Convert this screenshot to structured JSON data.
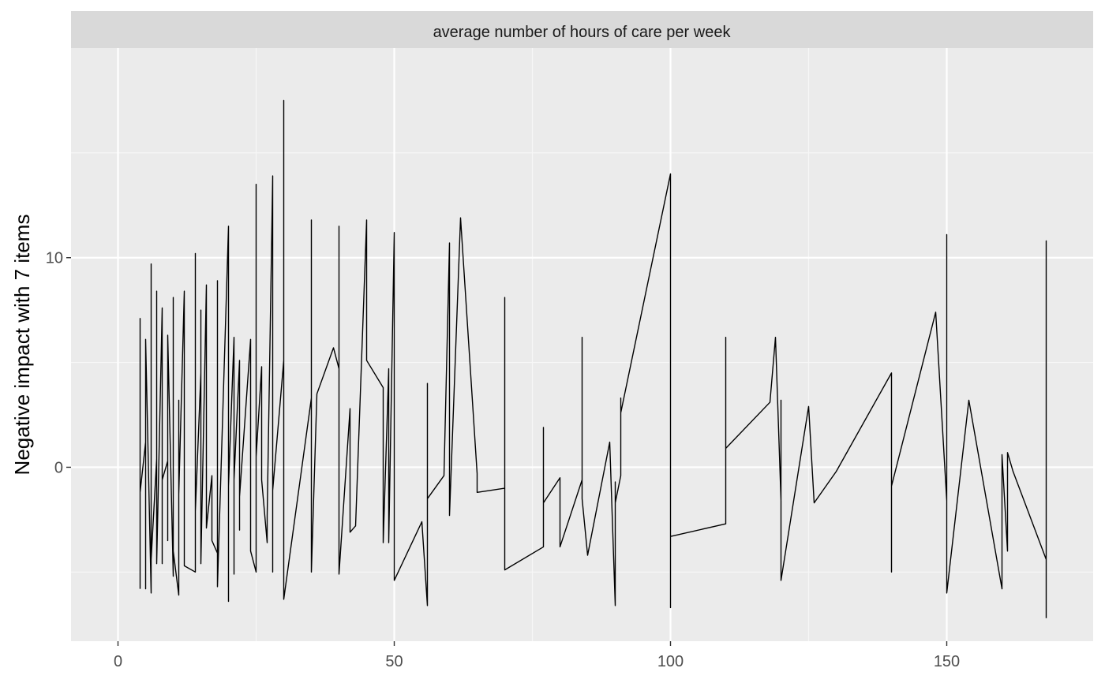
{
  "chart_data": {
    "type": "line",
    "facet_label": "average number of hours of care per week",
    "title": "",
    "xlabel": "",
    "ylabel": "Negative impact with 7 items",
    "xlim": [
      -8.5,
      176.5
    ],
    "ylim": [
      -8.3,
      20
    ],
    "x_breaks": [
      0,
      50,
      100,
      150
    ],
    "x_minor_breaks": [
      25,
      75,
      125
    ],
    "y_breaks": [
      0,
      10
    ],
    "y_minor_breaks": [
      -5,
      5,
      15
    ],
    "x_tick_labels": [
      "0",
      "50",
      "100",
      "150"
    ],
    "y_tick_labels": [
      "0",
      "10"
    ],
    "grid": true,
    "legend": "none",
    "colors": {
      "panel_background": "#ebebeb",
      "strip_background": "#d9d9d9",
      "grid_major": "#ffffff",
      "grid_minor": "#f7f7f7",
      "line": "#000000"
    },
    "series": [
      {
        "x": [
          4,
          4,
          4,
          5,
          5,
          5,
          6,
          6,
          6,
          7,
          7,
          7,
          8,
          8,
          8,
          9,
          9,
          9,
          10,
          10,
          10,
          11,
          11,
          11,
          12,
          12,
          14,
          14,
          14,
          15,
          15,
          15,
          16,
          16,
          17,
          17,
          18,
          18,
          18,
          20,
          20,
          20,
          21,
          21,
          21,
          22,
          22,
          22,
          24,
          24,
          25,
          25,
          25,
          26,
          26,
          27,
          27,
          28,
          28,
          28,
          30,
          30,
          30,
          35,
          35,
          35,
          36,
          39,
          40,
          40,
          40,
          42,
          42,
          43,
          45,
          45,
          48,
          48,
          49,
          49,
          50,
          50,
          50,
          55,
          56,
          56,
          56,
          59,
          60,
          60,
          62,
          65,
          65,
          70,
          70,
          70,
          77,
          77,
          77,
          80,
          80,
          80,
          84,
          84,
          84,
          85,
          89,
          90,
          90,
          90,
          91,
          91,
          91,
          100,
          100,
          100,
          110,
          110,
          110,
          118,
          119,
          120,
          120,
          120,
          125,
          126,
          130,
          140,
          140,
          140,
          148,
          150,
          150,
          150,
          154,
          160,
          160,
          161,
          161,
          162,
          168,
          168,
          168
        ],
        "y": [
          -5.8,
          7.1,
          -1.2,
          1.2,
          -5.8,
          6.1,
          -6,
          9.7,
          -4.4,
          0.4,
          8.4,
          -4.6,
          7.6,
          -4.6,
          -0.6,
          0.3,
          -3.5,
          6.3,
          -5.2,
          8.1,
          -4,
          -6.1,
          3.2,
          -1.3,
          8.4,
          -4.7,
          -5,
          10.2,
          -2.1,
          4.5,
          7.5,
          -4.6,
          8.7,
          -2.9,
          -0.4,
          -3.5,
          -4.1,
          8.9,
          -5.7,
          11.5,
          -6.4,
          -0.9,
          6.2,
          -5.1,
          -0.6,
          5.1,
          -3,
          -1.4,
          6.1,
          -4,
          -5,
          13.5,
          0.5,
          4.8,
          -0.6,
          -3.6,
          -2.3,
          13.9,
          -5,
          -1.1,
          5.1,
          17.5,
          -6.3,
          3.3,
          11.8,
          -5,
          3.5,
          5.7,
          4.7,
          11.5,
          -5.1,
          2.8,
          -3.1,
          -2.8,
          11.8,
          5.1,
          3.8,
          -3.6,
          4.7,
          -3.6,
          11.2,
          -1.5,
          -5.4,
          -2.6,
          -6.6,
          4,
          -1.5,
          -0.4,
          10.7,
          -2.3,
          11.9,
          -0.3,
          -1.2,
          -1,
          8.1,
          -4.9,
          -3.8,
          1.9,
          -1.7,
          -0.5,
          -0.8,
          -3.8,
          -0.6,
          6.2,
          -1.5,
          -4.2,
          1.2,
          -6.6,
          -0.7,
          -1.7,
          -0.4,
          3.3,
          2.6,
          14,
          -6.7,
          -3.3,
          -2.7,
          6.2,
          0.9,
          3.1,
          6.2,
          -1.6,
          3.2,
          -5.4,
          2.9,
          -1.7,
          -0.2,
          4.5,
          -5,
          -0.9,
          7.4,
          -1.6,
          11.1,
          -6,
          3.2,
          -5.8,
          0.6,
          -4,
          0.7,
          -0.2,
          -4.4,
          10.8,
          -7.2
        ]
      }
    ]
  }
}
